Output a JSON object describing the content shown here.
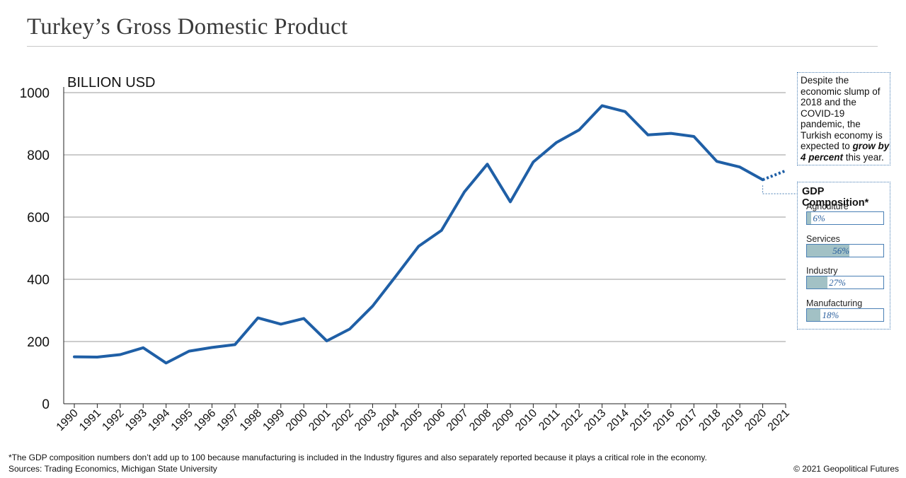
{
  "title": "Turkey’s Gross Domestic Product",
  "chart_data": {
    "type": "line",
    "ylabel": "BILLION USD",
    "xlabel": "",
    "ylim": [
      0,
      1000
    ],
    "yticks": [
      0,
      200,
      400,
      600,
      800,
      1000
    ],
    "grid": true,
    "line_color": "#1f5fa6",
    "x": [
      "1990",
      "1991",
      "1992",
      "1993",
      "1994",
      "1995",
      "1996",
      "1997",
      "1998",
      "1999",
      "2000",
      "2001",
      "2002",
      "2003",
      "2004",
      "2005",
      "2006",
      "2007",
      "2008",
      "2009",
      "2010",
      "2011",
      "2012",
      "2013",
      "2014",
      "2015",
      "2016",
      "2017",
      "2018",
      "2019",
      "2020",
      "2021"
    ],
    "series": [
      {
        "values": [
          151,
          150,
          158,
          180,
          131,
          169,
          181,
          190,
          276,
          256,
          274,
          202,
          240,
          314,
          409,
          506,
          557,
          681,
          770,
          649,
          777,
          839,
          880,
          958,
          939,
          864,
          869,
          859,
          779,
          761,
          720,
          null
        ],
        "style": "solid"
      },
      {
        "values": [
          null,
          null,
          null,
          null,
          null,
          null,
          null,
          null,
          null,
          null,
          null,
          null,
          null,
          null,
          null,
          null,
          null,
          null,
          null,
          null,
          null,
          null,
          null,
          null,
          null,
          null,
          null,
          null,
          null,
          null,
          720,
          749
        ],
        "style": "dotted"
      }
    ]
  },
  "note": {
    "text_before": "Despite the economic slump of 2018 and the COVID-19 pandemic, the Turkish economy is expected to ",
    "emphasis": "grow by 4 percent",
    "text_after": " this year."
  },
  "composition": {
    "title": "GDP Composition*",
    "items": [
      {
        "label": "Agriculture",
        "value": 6,
        "value_label": "6%"
      },
      {
        "label": "Services",
        "value": 56,
        "value_label": "56%"
      },
      {
        "label": "Industry",
        "value": 27,
        "value_label": "27%"
      },
      {
        "label": "Manufacturing",
        "value": 18,
        "value_label": "18%"
      }
    ]
  },
  "footnote": "*The GDP composition numbers don’t add up to 100 because manufacturing is included in the Industry figures and also separately reported because it plays a critical role in the economy.",
  "sources": "Sources: Trading Economics, Michigan State University",
  "copyright": "© 2021 Geopolitical Futures"
}
